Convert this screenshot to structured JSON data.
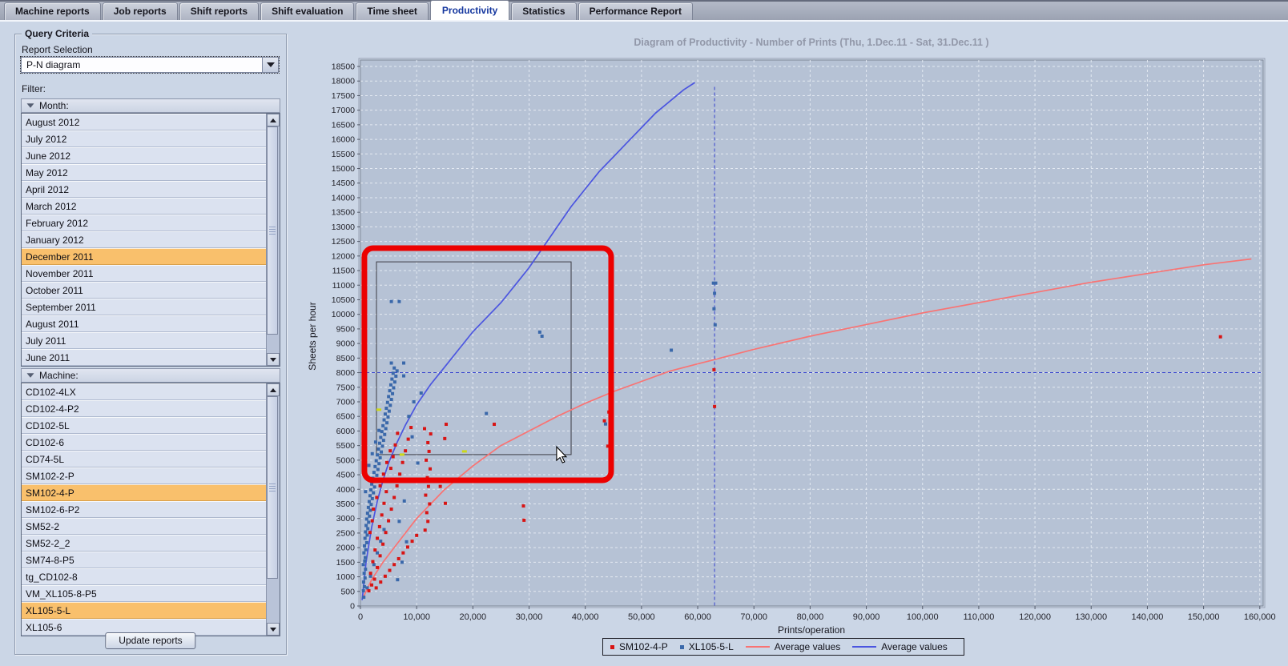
{
  "tabs": [
    {
      "label": "Machine reports",
      "active": false
    },
    {
      "label": "Job reports",
      "active": false
    },
    {
      "label": "Shift reports",
      "active": false
    },
    {
      "label": "Shift evaluation",
      "active": false
    },
    {
      "label": "Time sheet",
      "active": false
    },
    {
      "label": "Productivity",
      "active": true
    },
    {
      "label": "Statistics",
      "active": false
    },
    {
      "label": "Performance Report",
      "active": false
    }
  ],
  "query_panel": {
    "title": "Query Criteria",
    "report_selection_label": "Report Selection",
    "report_selection_value": "P-N diagram",
    "filter_label": "Filter:",
    "month_section": {
      "label": "Month:",
      "items": [
        "August 2012",
        "July 2012",
        "June 2012",
        "May 2012",
        "April 2012",
        "March 2012",
        "February 2012",
        "January 2012",
        "December 2011",
        "November 2011",
        "October 2011",
        "September 2011",
        "August 2011",
        "July 2011",
        "June 2011"
      ],
      "selected": [
        "December 2011"
      ]
    },
    "machine_section": {
      "label": "Machine:",
      "items": [
        "CD102-4LX",
        "CD102-4-P2",
        "CD102-5L",
        "CD102-6",
        "CD74-5L",
        "SM102-2-P",
        "SM102-4-P",
        "SM102-6-P2",
        "SM52-2",
        "SM52-2_2",
        "SM74-8-P5",
        "tg_CD102-8",
        "VM_XL105-8-P5",
        "XL105-5-L",
        "XL105-6"
      ],
      "selected": [
        "SM102-4-P",
        "XL105-5-L"
      ]
    },
    "update_button_label": "Update reports"
  },
  "chart_data": {
    "type": "scatter",
    "title": "Diagram of Productivity - Number of Prints   (Thu, 1.Dec.11  - Sat, 31.Dec.11 )",
    "xlabel": "Prints/operation",
    "ylabel": "Sheets per hour",
    "x_axis": {
      "min": 0,
      "max": 160600,
      "tick_step": 10000,
      "last_tick": 160000
    },
    "y_axis": {
      "min": 0,
      "max": 18720,
      "tick_step": 500,
      "last_tick": 18500
    },
    "grid": true,
    "colors": {
      "plot_bg": "#b6c2d5",
      "gridline": "#e3e9f2",
      "crosshair": "#3743cf",
      "red_points": "#d81414",
      "blue_points": "#3a68aa",
      "red_curve": "#f97373",
      "blue_curve": "#4b55e0",
      "highlight_rect": "#ec0000",
      "selection_rect": "#3c3c44",
      "selection_marks": "#ccd818",
      "selected_row": "#f9c06c",
      "title_text": "#9298a9"
    },
    "crosshair": {
      "x": 63000,
      "y": 8000,
      "y_top": 17800
    },
    "series": [
      {
        "name": "XL105-5-L",
        "type": "points",
        "color": "#3a68aa",
        "points": [
          [
            600,
            300
          ],
          [
            520,
            520
          ],
          [
            700,
            660
          ],
          [
            560,
            820
          ],
          [
            820,
            960
          ],
          [
            660,
            1120
          ],
          [
            900,
            1260
          ],
          [
            510,
            1420
          ],
          [
            760,
            1540
          ],
          [
            860,
            1660
          ],
          [
            620,
            1820
          ],
          [
            950,
            1930
          ],
          [
            720,
            2060
          ],
          [
            1120,
            2170
          ],
          [
            810,
            2320
          ],
          [
            1210,
            2430
          ],
          [
            910,
            2540
          ],
          [
            1310,
            2650
          ],
          [
            1010,
            2760
          ],
          [
            1460,
            2870
          ],
          [
            1110,
            2980
          ],
          [
            1610,
            3080
          ],
          [
            1260,
            3180
          ],
          [
            1760,
            3280
          ],
          [
            1410,
            3380
          ],
          [
            1910,
            3480
          ],
          [
            1560,
            3580
          ],
          [
            2110,
            3680
          ],
          [
            1710,
            3780
          ],
          [
            2310,
            3880
          ],
          [
            1860,
            3980
          ],
          [
            2510,
            4080
          ],
          [
            2010,
            4180
          ],
          [
            2710,
            4280
          ],
          [
            2210,
            4380
          ],
          [
            2910,
            4480
          ],
          [
            2410,
            4580
          ],
          [
            3110,
            4680
          ],
          [
            2610,
            4780
          ],
          [
            3310,
            4880
          ],
          [
            2810,
            4980
          ],
          [
            3510,
            5080
          ],
          [
            3010,
            5180
          ],
          [
            3710,
            5280
          ],
          [
            3210,
            5380
          ],
          [
            3910,
            5480
          ],
          [
            3410,
            5580
          ],
          [
            4110,
            5680
          ],
          [
            3610,
            5780
          ],
          [
            4310,
            5880
          ],
          [
            3810,
            5980
          ],
          [
            4510,
            6080
          ],
          [
            4010,
            6180
          ],
          [
            4710,
            6280
          ],
          [
            4210,
            6380
          ],
          [
            4910,
            6480
          ],
          [
            4410,
            6580
          ],
          [
            5110,
            6680
          ],
          [
            4610,
            6780
          ],
          [
            5310,
            6880
          ],
          [
            4810,
            6980
          ],
          [
            5510,
            7080
          ],
          [
            5010,
            7180
          ],
          [
            5710,
            7280
          ],
          [
            5210,
            7380
          ],
          [
            5910,
            7480
          ],
          [
            5410,
            7580
          ],
          [
            6110,
            7680
          ],
          [
            5610,
            7780
          ],
          [
            6310,
            7880
          ],
          [
            5810,
            7980
          ],
          [
            6510,
            8060
          ],
          [
            6010,
            8160
          ],
          [
            5500,
            8330
          ],
          [
            7700,
            8330
          ],
          [
            7700,
            7890
          ],
          [
            9500,
            7000
          ],
          [
            10800,
            7300
          ],
          [
            8600,
            6500
          ],
          [
            9200,
            5800
          ],
          [
            10200,
            4900
          ],
          [
            8900,
            4300
          ],
          [
            7800,
            3600
          ],
          [
            6900,
            2900
          ],
          [
            8200,
            2200
          ],
          [
            7400,
            1500
          ],
          [
            6600,
            900
          ],
          [
            1200,
            620
          ],
          [
            1800,
            1020
          ],
          [
            2400,
            1420
          ],
          [
            3000,
            1820
          ],
          [
            3600,
            2220
          ],
          [
            4200,
            2620
          ],
          [
            1500,
            4820
          ],
          [
            2100,
            5220
          ],
          [
            2700,
            5620
          ],
          [
            3300,
            6020
          ],
          [
            900,
            3920
          ],
          [
            1050,
            4420
          ],
          [
            5500,
            10440
          ],
          [
            6900,
            10440
          ],
          [
            22400,
            6600
          ],
          [
            31900,
            9390
          ],
          [
            32300,
            9250
          ],
          [
            43600,
            6240
          ],
          [
            55300,
            8770
          ],
          [
            62800,
            11070
          ],
          [
            63200,
            11070
          ],
          [
            63000,
            10720
          ],
          [
            62900,
            10190
          ],
          [
            63100,
            9640
          ]
        ]
      },
      {
        "name": "SM102-4-P",
        "type": "points",
        "color": "#d81414",
        "points": [
          [
            1500,
            520
          ],
          [
            2000,
            720
          ],
          [
            2500,
            920
          ],
          [
            1800,
            1120
          ],
          [
            3000,
            1320
          ],
          [
            2200,
            1520
          ],
          [
            3500,
            1720
          ],
          [
            2600,
            1920
          ],
          [
            4000,
            2120
          ],
          [
            3000,
            2320
          ],
          [
            4500,
            2520
          ],
          [
            3400,
            2720
          ],
          [
            5000,
            2920
          ],
          [
            3800,
            3120
          ],
          [
            5500,
            3320
          ],
          [
            4200,
            3520
          ],
          [
            6000,
            3720
          ],
          [
            4600,
            3920
          ],
          [
            6500,
            4120
          ],
          [
            5000,
            4320
          ],
          [
            7000,
            4520
          ],
          [
            5400,
            4720
          ],
          [
            7500,
            4920
          ],
          [
            5800,
            5120
          ],
          [
            8000,
            5320
          ],
          [
            6200,
            5520
          ],
          [
            8500,
            5720
          ],
          [
            6600,
            5920
          ],
          [
            9000,
            6120
          ],
          [
            2800,
            620
          ],
          [
            3600,
            820
          ],
          [
            4400,
            1020
          ],
          [
            5200,
            1220
          ],
          [
            6000,
            1420
          ],
          [
            6800,
            1620
          ],
          [
            7600,
            1820
          ],
          [
            8400,
            2020
          ],
          [
            9200,
            2220
          ],
          [
            10000,
            2420
          ],
          [
            2300,
            3320
          ],
          [
            2900,
            3720
          ],
          [
            3500,
            4120
          ],
          [
            4100,
            4520
          ],
          [
            4700,
            4920
          ],
          [
            5300,
            5320
          ],
          [
            1700,
            2520
          ],
          [
            2100,
            2920
          ],
          [
            11500,
            2600
          ],
          [
            12000,
            2900
          ],
          [
            11800,
            3200
          ],
          [
            12300,
            3500
          ],
          [
            11600,
            3800
          ],
          [
            12100,
            4100
          ],
          [
            11900,
            4400
          ],
          [
            12400,
            4700
          ],
          [
            11700,
            5000
          ],
          [
            12200,
            5300
          ],
          [
            12000,
            5600
          ],
          [
            12500,
            5900
          ],
          [
            11400,
            6080
          ],
          [
            15100,
            3520
          ],
          [
            15000,
            5740
          ],
          [
            15250,
            6230
          ],
          [
            14200,
            4100
          ],
          [
            29000,
            3430
          ],
          [
            29100,
            2940
          ],
          [
            23800,
            6230
          ],
          [
            43400,
            6350
          ],
          [
            44200,
            6650
          ],
          [
            44000,
            5480
          ],
          [
            62900,
            8100
          ],
          [
            63000,
            6840
          ],
          [
            153000,
            9230
          ]
        ]
      },
      {
        "name": "Average values",
        "type": "line",
        "color": "#f97373",
        "points": [
          [
            500,
            300
          ],
          [
            2000,
            900
          ],
          [
            4000,
            1500
          ],
          [
            6000,
            2000
          ],
          [
            8000,
            2500
          ],
          [
            10000,
            3000
          ],
          [
            12500,
            3500
          ],
          [
            15000,
            4000
          ],
          [
            17500,
            4400
          ],
          [
            20000,
            4800
          ],
          [
            25000,
            5500
          ],
          [
            30000,
            6000
          ],
          [
            35000,
            6500
          ],
          [
            40000,
            6950
          ],
          [
            45000,
            7350
          ],
          [
            50000,
            7700
          ],
          [
            55000,
            8050
          ],
          [
            60000,
            8300
          ],
          [
            63000,
            8450
          ],
          [
            70000,
            8800
          ],
          [
            80000,
            9250
          ],
          [
            90000,
            9650
          ],
          [
            100000,
            10050
          ],
          [
            110000,
            10400
          ],
          [
            120000,
            10750
          ],
          [
            130000,
            11100
          ],
          [
            140000,
            11400
          ],
          [
            150000,
            11700
          ],
          [
            158500,
            11900
          ]
        ]
      },
      {
        "name": "Average values",
        "type": "line",
        "color": "#4b55e0",
        "points": [
          [
            300,
            200
          ],
          [
            1000,
            1500
          ],
          [
            2000,
            2700
          ],
          [
            3000,
            3600
          ],
          [
            4000,
            4300
          ],
          [
            5000,
            4900
          ],
          [
            6500,
            5600
          ],
          [
            8000,
            6200
          ],
          [
            10000,
            6900
          ],
          [
            12500,
            7600
          ],
          [
            15000,
            8200
          ],
          [
            17500,
            8800
          ],
          [
            20000,
            9400
          ],
          [
            22500,
            9900
          ],
          [
            25000,
            10400
          ],
          [
            27500,
            11000
          ],
          [
            30000,
            11600
          ],
          [
            32500,
            12300
          ],
          [
            35000,
            13000
          ],
          [
            37500,
            13700
          ],
          [
            40000,
            14300
          ],
          [
            42500,
            14900
          ],
          [
            45000,
            15400
          ],
          [
            47500,
            15900
          ],
          [
            50000,
            16400
          ],
          [
            52500,
            16900
          ],
          [
            55000,
            17300
          ],
          [
            57500,
            17700
          ],
          [
            59500,
            17950
          ]
        ]
      }
    ],
    "annotations": {
      "highlight_rect": {
        "x1": 700,
        "y1": 4310,
        "x2": 44600,
        "y2": 12270
      },
      "selection_rect": {
        "x1": 2850,
        "y1": 5190,
        "x2": 37480,
        "y2": 11800
      },
      "selection_marks": [
        {
          "x": 3280,
          "y": 6730
        },
        {
          "x": 7400,
          "y": 5190
        },
        {
          "x": 18500,
          "y": 5300
        }
      ],
      "cursor": {
        "x": 34900,
        "y": 5460
      }
    },
    "legend": [
      {
        "label": "SM102-4-P",
        "marker": "point",
        "color": "#d81414"
      },
      {
        "label": "XL105-5-L",
        "marker": "point",
        "color": "#3a68aa"
      },
      {
        "label": "Average values",
        "marker": "line",
        "color": "#f97373"
      },
      {
        "label": "Average values",
        "marker": "line",
        "color": "#4b55e0"
      }
    ]
  }
}
